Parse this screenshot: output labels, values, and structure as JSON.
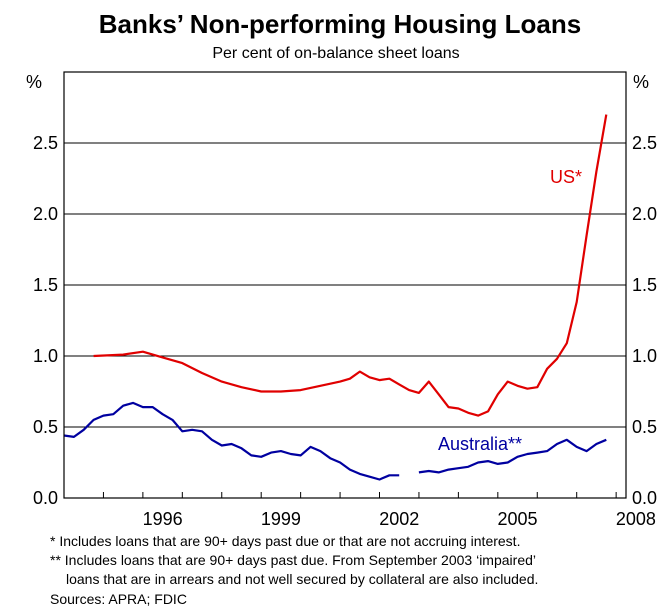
{
  "chart_data": {
    "type": "line",
    "title": "Banks’ Non-performing Housing Loans",
    "subtitle": "Per cent of on-balance sheet loans",
    "y_unit_left": "%",
    "y_unit_right": "%",
    "ylim": [
      0,
      3
    ],
    "yticks": [
      "0.0",
      "0.5",
      "1.0",
      "1.5",
      "2.0",
      "2.5"
    ],
    "xlim": [
      1994.0,
      2008.25
    ],
    "xticks": [
      "1996",
      "1999",
      "2002",
      "2005",
      "2008"
    ],
    "series": [
      {
        "name": "US*",
        "color": "#e00000",
        "points": [
          [
            1994.75,
            1.0
          ],
          [
            1995.5,
            1.01
          ],
          [
            1996.0,
            1.03
          ],
          [
            1996.5,
            0.99
          ],
          [
            1997.0,
            0.95
          ],
          [
            1997.5,
            0.88
          ],
          [
            1998.0,
            0.82
          ],
          [
            1998.5,
            0.78
          ],
          [
            1999.0,
            0.75
          ],
          [
            1999.5,
            0.75
          ],
          [
            2000.0,
            0.76
          ],
          [
            2000.5,
            0.79
          ],
          [
            2001.0,
            0.82
          ],
          [
            2001.25,
            0.84
          ],
          [
            2001.5,
            0.89
          ],
          [
            2001.75,
            0.85
          ],
          [
            2002.0,
            0.83
          ],
          [
            2002.25,
            0.84
          ],
          [
            2002.5,
            0.8
          ],
          [
            2002.75,
            0.76
          ],
          [
            2003.0,
            0.74
          ],
          [
            2003.25,
            0.82
          ],
          [
            2003.5,
            0.73
          ],
          [
            2003.75,
            0.64
          ],
          [
            2004.0,
            0.63
          ],
          [
            2004.25,
            0.6
          ],
          [
            2004.5,
            0.58
          ],
          [
            2004.75,
            0.61
          ],
          [
            2005.0,
            0.73
          ],
          [
            2005.25,
            0.82
          ],
          [
            2005.5,
            0.79
          ],
          [
            2005.75,
            0.77
          ],
          [
            2006.0,
            0.78
          ],
          [
            2006.25,
            0.91
          ],
          [
            2006.5,
            0.98
          ],
          [
            2006.75,
            1.09
          ],
          [
            2007.0,
            1.38
          ],
          [
            2007.25,
            1.85
          ],
          [
            2007.5,
            2.3
          ],
          [
            2007.75,
            2.7
          ]
        ]
      },
      {
        "name": "Australia**",
        "color": "#0000a0",
        "points": [
          [
            1994.0,
            0.44
          ],
          [
            1994.25,
            0.43
          ],
          [
            1994.5,
            0.48
          ],
          [
            1994.75,
            0.55
          ],
          [
            1995.0,
            0.58
          ],
          [
            1995.25,
            0.59
          ],
          [
            1995.5,
            0.65
          ],
          [
            1995.75,
            0.67
          ],
          [
            1996.0,
            0.64
          ],
          [
            1996.25,
            0.64
          ],
          [
            1996.5,
            0.59
          ],
          [
            1996.75,
            0.55
          ],
          [
            1997.0,
            0.47
          ],
          [
            1997.25,
            0.48
          ],
          [
            1997.5,
            0.47
          ],
          [
            1997.75,
            0.41
          ],
          [
            1998.0,
            0.37
          ],
          [
            1998.25,
            0.38
          ],
          [
            1998.5,
            0.35
          ],
          [
            1998.75,
            0.3
          ],
          [
            1999.0,
            0.29
          ],
          [
            1999.25,
            0.32
          ],
          [
            1999.5,
            0.33
          ],
          [
            1999.75,
            0.31
          ],
          [
            2000.0,
            0.3
          ],
          [
            2000.25,
            0.36
          ],
          [
            2000.5,
            0.33
          ],
          [
            2000.75,
            0.28
          ],
          [
            2001.0,
            0.25
          ],
          [
            2001.25,
            0.2
          ],
          [
            2001.5,
            0.17
          ],
          [
            2001.75,
            0.15
          ],
          [
            2002.0,
            0.13
          ],
          [
            2002.25,
            0.16
          ],
          [
            2002.5,
            0.16
          ],
          null,
          [
            2003.0,
            0.18
          ],
          [
            2003.25,
            0.19
          ],
          [
            2003.5,
            0.18
          ],
          [
            2003.75,
            0.2
          ],
          [
            2004.0,
            0.21
          ],
          [
            2004.25,
            0.22
          ],
          [
            2004.5,
            0.25
          ],
          [
            2004.75,
            0.26
          ],
          [
            2005.0,
            0.24
          ],
          [
            2005.25,
            0.25
          ],
          [
            2005.5,
            0.29
          ],
          [
            2005.75,
            0.31
          ],
          [
            2006.0,
            0.32
          ],
          [
            2006.25,
            0.33
          ],
          [
            2006.5,
            0.38
          ],
          [
            2006.75,
            0.41
          ],
          [
            2007.0,
            0.36
          ],
          [
            2007.25,
            0.33
          ],
          [
            2007.5,
            0.38
          ],
          [
            2007.75,
            0.41
          ]
        ]
      }
    ],
    "grid": "horizontal",
    "notes": [
      "*   Includes loans that are 90+ days past due or that are not accruing interest.",
      "**  Includes loans that are 90+ days past due. From September 2003 ‘impaired’",
      "loans that are in arrears and not well secured by collateral are also included.",
      "Sources: APRA;  FDIC"
    ]
  }
}
